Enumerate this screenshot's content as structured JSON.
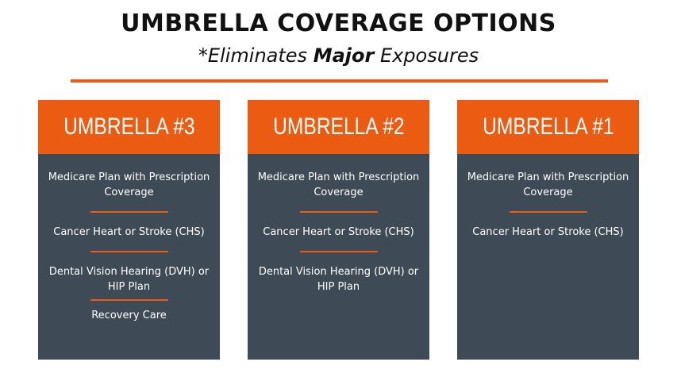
{
  "header": {
    "title": "UMBRELLA COVERAGE OPTIONS",
    "subtitle_prefix": "*Eliminates ",
    "subtitle_bold": "Major",
    "subtitle_suffix": " Exposures"
  },
  "colors": {
    "accent": "#ec5b12",
    "card_bg": "#3f4a57",
    "title_text": "#111111"
  },
  "cards": [
    {
      "title": "UMBRELLA #3",
      "items": [
        "Medicare Plan with Prescription Coverage",
        "Cancer Heart or Stroke (CHS)",
        "Dental Vision Hearing (DVH) or HIP Plan",
        "Recovery Care"
      ]
    },
    {
      "title": "UMBRELLA #2",
      "items": [
        "Medicare Plan with Prescription Coverage",
        "Cancer Heart or Stroke (CHS)",
        "Dental Vision Hearing (DVH) or HIP Plan"
      ]
    },
    {
      "title": "UMBRELLA #1",
      "items": [
        "Medicare Plan with Prescription Coverage",
        "Cancer Heart or Stroke (CHS)"
      ]
    }
  ]
}
